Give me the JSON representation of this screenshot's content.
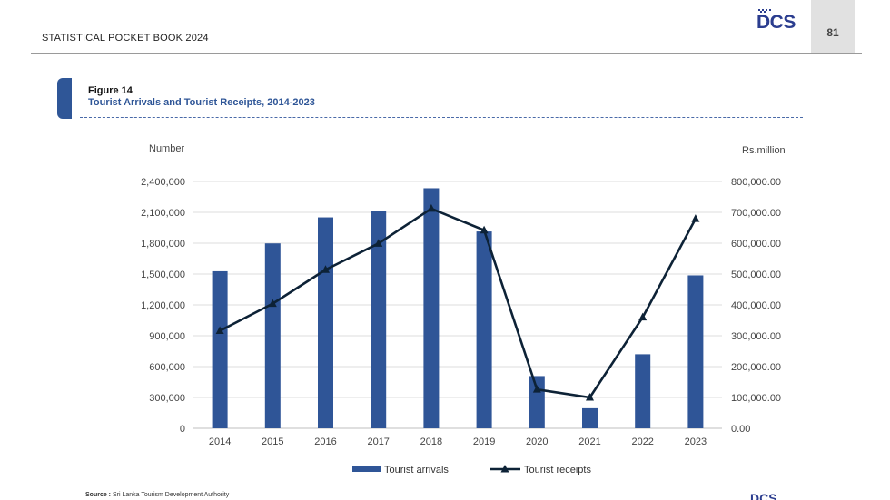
{
  "header": {
    "title": "STATISTICAL POCKET BOOK 2024",
    "logo_text": "DCS",
    "page_number": "81"
  },
  "figure": {
    "label": "Figure 14",
    "title": "Tourist Arrivals and Tourist Receipts, 2014-2023"
  },
  "source": {
    "label": "Source :",
    "text": "Sri Lanka Tourism Development Authority"
  },
  "footer_logo_text": "DCS",
  "colors": {
    "bars": "#2f5597",
    "line": "#0d2236",
    "brand": "#2b3d8f"
  },
  "chart_data": {
    "type": "bar",
    "title": "Tourist Arrivals and Tourist Receipts, 2014-2023",
    "categories": [
      "2014",
      "2015",
      "2016",
      "2017",
      "2018",
      "2019",
      "2020",
      "2021",
      "2022",
      "2023"
    ],
    "ylabel": "Number",
    "y2label": "Rs.million",
    "ylim": [
      0,
      2400000
    ],
    "y2lim": [
      0,
      800000
    ],
    "yticks": [
      "0",
      "300,000",
      "600,000",
      "900,000",
      "1,200,000",
      "1,500,000",
      "1,800,000",
      "2,100,000",
      "2,400,000"
    ],
    "y2ticks": [
      "0.00",
      "100,000.00",
      "200,000.00",
      "300,000.00",
      "400,000.00",
      "500,000.00",
      "600,000.00",
      "700,000.00",
      "800,000.00"
    ],
    "grid": true,
    "legend_position": "bottom",
    "series": [
      {
        "name": "Tourist arrivals",
        "type": "bar",
        "axis": "left",
        "values": [
          1527000,
          1798000,
          2051000,
          2116000,
          2334000,
          1914000,
          508000,
          195000,
          720000,
          1487000
        ]
      },
      {
        "name": "Tourist receipts",
        "type": "line",
        "axis": "right",
        "marker": "triangle",
        "values": [
          316000,
          404000,
          514000,
          599000,
          712000,
          642000,
          126000,
          100000,
          360000,
          679000
        ]
      }
    ]
  }
}
